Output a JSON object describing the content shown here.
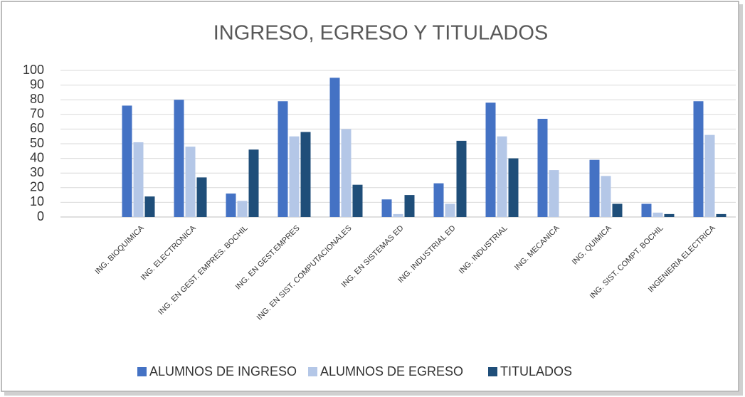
{
  "chart_data": {
    "type": "bar",
    "title": "INGRESO, EGRESO Y TITULADOS",
    "categories": [
      null,
      "ING. BIOQUIMICA",
      "ING. ELECTRONICA",
      "ING. EN GEST. EMPRES. BOCHIL",
      "ING. EN GEST.EMPRES",
      "ING. EN SIST. COMPUTACIONALES",
      "ING. EN SISTEMAS ED",
      "ING. INDUSTRIAL ED",
      "ING. INDUSTRIAL",
      "ING. MECANICA",
      "ING. QUIMICA",
      "ING. SIST. COMPT. BOCHIL",
      "INGENIERIA ELECTRICA"
    ],
    "series": [
      {
        "name": "ALUMNOS DE INGRESO",
        "color": "#4472c4",
        "values": [
          null,
          76,
          80,
          16,
          79,
          95,
          12,
          23,
          78,
          67,
          39,
          9,
          79
        ]
      },
      {
        "name": "ALUMNOS DE EGRESO",
        "color": "#b4c7e7",
        "values": [
          null,
          51,
          48,
          11,
          55,
          60,
          2,
          9,
          55,
          32,
          28,
          3,
          56
        ]
      },
      {
        "name": "TITULADOS",
        "color": "#1f4e79",
        "values": [
          null,
          14,
          27,
          46,
          58,
          22,
          15,
          52,
          40,
          null,
          9,
          2,
          2
        ]
      }
    ],
    "ylim": [
      0,
      100
    ],
    "yticks": [
      0,
      10,
      20,
      30,
      40,
      50,
      60,
      70,
      80,
      90,
      100
    ],
    "grid": true,
    "legend": "bottom"
  }
}
